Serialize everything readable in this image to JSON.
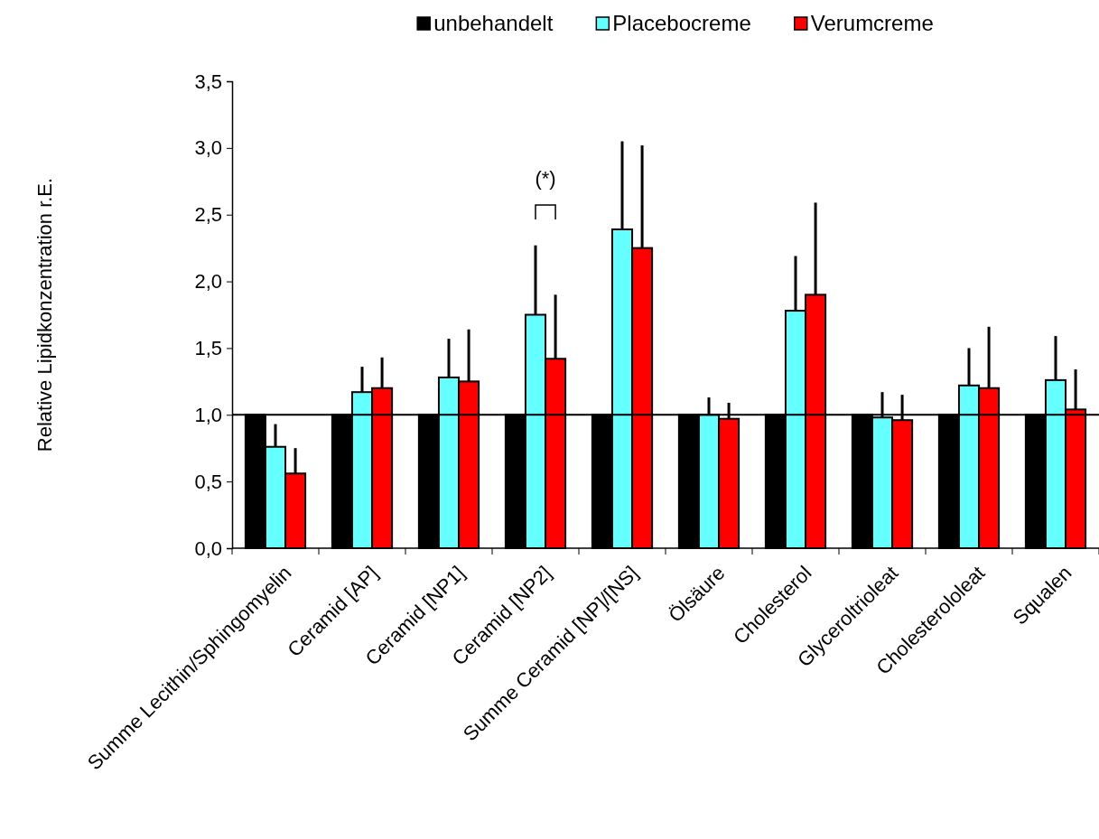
{
  "chart_data": {
    "type": "bar",
    "ylabel": "Relative Lipidkonzentration r.E.",
    "categories": [
      "Summe Lecithin/Sphingomyelin",
      "Ceramid [AP]",
      "Ceramid [NP1]",
      "Ceramid [NP2]",
      "Summe Ceramid [NP]/[NS]",
      "Ölsäure",
      "Cholesterol",
      "Glyceroltrioleat",
      "Cholesterololeat",
      "Squalen"
    ],
    "series": [
      {
        "name": "unbehandelt",
        "color": "#000000",
        "values": [
          1,
          1,
          1,
          1,
          1,
          1,
          1,
          1,
          1,
          1
        ]
      },
      {
        "name": "Placebocreme",
        "color": "#66ffff",
        "values": [
          0.76,
          1.17,
          1.28,
          1.75,
          2.39,
          1.0,
          1.78,
          0.98,
          1.22,
          1.26
        ],
        "errors": [
          [
            0.76,
            0.93
          ],
          [
            1.17,
            1.36
          ],
          [
            1.28,
            1.57
          ],
          [
            1.75,
            2.27
          ],
          [
            2.39,
            3.05
          ],
          [
            1.0,
            1.13
          ],
          [
            1.78,
            2.19
          ],
          [
            0.98,
            1.17
          ],
          [
            1.22,
            1.5
          ],
          [
            1.26,
            1.59
          ]
        ]
      },
      {
        "name": "Verumcreme",
        "color": "#ff0000",
        "values": [
          0.56,
          1.2,
          1.25,
          1.42,
          2.25,
          0.97,
          1.9,
          0.96,
          1.2,
          1.04
        ],
        "errors": [
          [
            0.56,
            0.75
          ],
          [
            1.2,
            1.43
          ],
          [
            1.25,
            1.64
          ],
          [
            1.42,
            1.9
          ],
          [
            2.25,
            3.02
          ],
          [
            0.97,
            1.09
          ],
          [
            1.9,
            2.59
          ],
          [
            0.96,
            1.15
          ],
          [
            1.2,
            1.66
          ],
          [
            1.04,
            1.34
          ]
        ]
      }
    ],
    "ylim": [
      0,
      3.5
    ],
    "yticks": [
      {
        "value": 0,
        "label": "0,0"
      },
      {
        "value": 0.5,
        "label": "0,5"
      },
      {
        "value": 1,
        "label": "1,0"
      },
      {
        "value": 1.5,
        "label": "1,5"
      },
      {
        "value": 2,
        "label": "2,0"
      },
      {
        "value": 2.5,
        "label": "2,5"
      },
      {
        "value": 3,
        "label": "3,0"
      },
      {
        "value": 3.5,
        "label": "3,5"
      }
    ],
    "ref_lines": [
      {
        "axis": "y",
        "value": 1,
        "color": "#000000"
      }
    ],
    "annotations": [
      "(*)"
    ],
    "legend": "top",
    "grid": false
  }
}
